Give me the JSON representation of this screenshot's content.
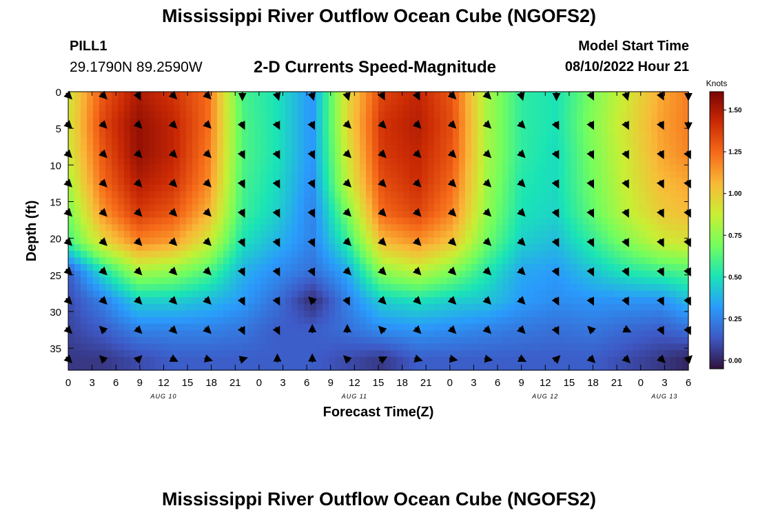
{
  "title_top": "Mississippi River Outflow Ocean Cube (NGOFS2)",
  "title_bottom": "Mississippi River Outflow Ocean Cube (NGOFS2)",
  "station": "PILL1",
  "coords": "29.1790N  89.2590W",
  "plot_title": "2-D Currents Speed-Magnitude",
  "model_start_label": "Model Start Time",
  "model_start_value": "08/10/2022 Hour 21",
  "colors": {
    "colormap": [
      "#30123b",
      "#3e58c4",
      "#2a9bfc",
      "#1ae4b6",
      "#72fe5e",
      "#c8ef34",
      "#f9ba38",
      "#f66b19",
      "#cb2a04",
      "#7a0403"
    ],
    "arrow": "#000000"
  },
  "chart_data": {
    "type": "heatmap",
    "xlabel": "Forecast Time(Z)",
    "ylabel": "Depth (ft)",
    "x_ticks": [
      "0",
      "3",
      "6",
      "9",
      "12",
      "15",
      "18",
      "21",
      "0",
      "3",
      "6",
      "9",
      "12",
      "15",
      "18",
      "21",
      "0",
      "3",
      "6",
      "9",
      "12",
      "15",
      "18",
      "21",
      "0",
      "3",
      "6"
    ],
    "date_labels": [
      {
        "label": "AUG 10",
        "hour": 12
      },
      {
        "label": "AUG 11",
        "hour": 36
      },
      {
        "label": "AUG 12",
        "hour": 60
      },
      {
        "label": "AUG 13",
        "hour": 75
      }
    ],
    "x_range_hours": [
      0,
      78
    ],
    "y_ticks": [
      0,
      5,
      10,
      15,
      20,
      25,
      30,
      35
    ],
    "ylim": [
      0,
      38
    ],
    "y_inverted": true,
    "colorbar": {
      "label": "Knots",
      "range": [
        -0.05,
        1.61
      ],
      "ticks": [
        "0.00",
        "0.25",
        "0.50",
        "0.75",
        "1.00",
        "1.25",
        "1.50"
      ]
    },
    "vector_hours": [
      0,
      4.4,
      8.8,
      13.2,
      17.5,
      21.9,
      26.3,
      30.7,
      35.1,
      39.5,
      43.9,
      48.3,
      52.7,
      57.0,
      61.4,
      65.8,
      70.2,
      74.6,
      78
    ],
    "vector_depths": [
      0.5,
      4.5,
      8.5,
      12.5,
      16.5,
      20.5,
      24.5,
      28.5,
      32.5,
      36.5
    ],
    "speed_grid": [
      [
        0.9,
        1.3,
        1.5,
        1.4,
        1.25,
        0.6,
        0.5,
        0.3,
        0.95,
        1.35,
        1.45,
        1.3,
        0.8,
        0.55,
        0.5,
        0.7,
        0.9,
        1.1,
        1.2
      ],
      [
        0.9,
        1.35,
        1.55,
        1.45,
        1.25,
        0.62,
        0.5,
        0.3,
        0.95,
        1.4,
        1.48,
        1.32,
        0.8,
        0.55,
        0.5,
        0.72,
        0.92,
        1.12,
        1.2
      ],
      [
        0.88,
        1.3,
        1.55,
        1.45,
        1.22,
        0.62,
        0.5,
        0.3,
        0.9,
        1.38,
        1.45,
        1.3,
        0.8,
        0.55,
        0.48,
        0.7,
        0.9,
        1.1,
        1.18
      ],
      [
        0.8,
        1.25,
        1.48,
        1.4,
        1.18,
        0.6,
        0.48,
        0.28,
        0.85,
        1.32,
        1.42,
        1.25,
        0.78,
        0.52,
        0.48,
        0.68,
        0.88,
        1.05,
        1.1
      ],
      [
        0.7,
        1.15,
        1.38,
        1.3,
        1.08,
        0.58,
        0.45,
        0.25,
        0.7,
        1.25,
        1.35,
        1.18,
        0.75,
        0.5,
        0.46,
        0.65,
        0.85,
        1.0,
        1.05
      ],
      [
        0.58,
        0.95,
        1.18,
        1.12,
        0.9,
        0.5,
        0.38,
        0.25,
        0.55,
        1.05,
        1.15,
        1.02,
        0.68,
        0.45,
        0.4,
        0.55,
        0.72,
        0.88,
        0.92
      ],
      [
        0.15,
        0.5,
        0.8,
        0.75,
        0.62,
        0.38,
        0.28,
        0.2,
        0.35,
        0.75,
        0.85,
        0.72,
        0.52,
        0.35,
        0.32,
        0.42,
        0.52,
        0.58,
        0.62
      ],
      [
        0.1,
        0.25,
        0.45,
        0.45,
        0.4,
        0.32,
        0.2,
        0.02,
        0.25,
        0.45,
        0.5,
        0.45,
        0.42,
        0.32,
        0.28,
        0.3,
        0.3,
        0.3,
        0.4
      ],
      [
        0.08,
        0.15,
        0.25,
        0.25,
        0.25,
        0.22,
        0.15,
        0.15,
        0.2,
        0.28,
        0.3,
        0.28,
        0.25,
        0.22,
        0.2,
        0.22,
        0.18,
        0.15,
        0.2
      ],
      [
        0.05,
        0.05,
        0.1,
        0.15,
        0.15,
        0.15,
        0.15,
        0.15,
        0.1,
        0.05,
        0.15,
        0.15,
        0.15,
        0.15,
        0.15,
        0.15,
        0.1,
        0.05,
        0.0
      ]
    ],
    "vectors": [
      [
        [
          1,
          1
        ],
        [
          1,
          1
        ],
        [
          0.5,
          1
        ],
        [
          1,
          1
        ],
        [
          1,
          1
        ],
        [
          0,
          1
        ],
        [
          0.3,
          1
        ],
        [
          0.3,
          1
        ],
        [
          0.3,
          1
        ],
        [
          0.5,
          1
        ],
        [
          0.5,
          1
        ],
        [
          1,
          1
        ],
        [
          1,
          1
        ],
        [
          0.3,
          1
        ],
        [
          0,
          1
        ],
        [
          0.5,
          1
        ],
        [
          0.3,
          1
        ],
        [
          0.5,
          1
        ],
        [
          0,
          1
        ]
      ],
      [
        [
          1,
          1
        ],
        [
          1,
          1
        ],
        [
          1,
          1
        ],
        [
          1,
          1
        ],
        [
          1,
          1
        ],
        [
          0.5,
          1
        ],
        [
          0.5,
          1
        ],
        [
          0.5,
          1
        ],
        [
          1,
          1
        ],
        [
          1,
          1
        ],
        [
          1,
          1
        ],
        [
          1,
          1
        ],
        [
          1,
          1
        ],
        [
          1,
          1
        ],
        [
          0.5,
          1
        ],
        [
          0.5,
          1
        ],
        [
          0.5,
          1
        ],
        [
          0.5,
          1
        ],
        [
          0,
          1
        ]
      ],
      [
        [
          1,
          1
        ],
        [
          1,
          1
        ],
        [
          1,
          1
        ],
        [
          1,
          1
        ],
        [
          1,
          1
        ],
        [
          0.5,
          1
        ],
        [
          0.5,
          1
        ],
        [
          0.5,
          1
        ],
        [
          1,
          1
        ],
        [
          1,
          1
        ],
        [
          1,
          1
        ],
        [
          1,
          1
        ],
        [
          1,
          1
        ],
        [
          1,
          1
        ],
        [
          0.5,
          1
        ],
        [
          0.5,
          1
        ],
        [
          0.5,
          1
        ],
        [
          0.5,
          1
        ],
        [
          0.5,
          1
        ]
      ],
      [
        [
          1,
          1
        ],
        [
          1,
          1
        ],
        [
          1,
          1
        ],
        [
          1,
          1
        ],
        [
          1,
          1
        ],
        [
          0.5,
          1
        ],
        [
          0.5,
          1
        ],
        [
          0.5,
          1
        ],
        [
          1,
          1
        ],
        [
          1,
          1
        ],
        [
          1,
          1
        ],
        [
          1,
          1
        ],
        [
          1,
          1
        ],
        [
          1,
          1
        ],
        [
          0.5,
          1
        ],
        [
          0.5,
          1
        ],
        [
          0.5,
          1
        ],
        [
          0.5,
          1
        ],
        [
          0.5,
          1
        ]
      ],
      [
        [
          1,
          1
        ],
        [
          1,
          1
        ],
        [
          1,
          1
        ],
        [
          1,
          1
        ],
        [
          1,
          1
        ],
        [
          0.5,
          1
        ],
        [
          0.5,
          1
        ],
        [
          0.5,
          1
        ],
        [
          1,
          1
        ],
        [
          1,
          1
        ],
        [
          1,
          1
        ],
        [
          1,
          1
        ],
        [
          1,
          1
        ],
        [
          1,
          1
        ],
        [
          0.5,
          1
        ],
        [
          0.5,
          1
        ],
        [
          0.5,
          1
        ],
        [
          0.5,
          1
        ],
        [
          0.5,
          1
        ]
      ],
      [
        [
          1,
          1
        ],
        [
          1,
          1
        ],
        [
          1,
          1
        ],
        [
          1,
          1
        ],
        [
          1,
          1
        ],
        [
          0.5,
          1
        ],
        [
          0.5,
          1
        ],
        [
          0.5,
          1
        ],
        [
          1,
          1
        ],
        [
          1,
          1
        ],
        [
          1,
          1
        ],
        [
          1,
          1
        ],
        [
          1,
          1
        ],
        [
          1,
          1
        ],
        [
          0.5,
          1
        ],
        [
          0.5,
          1
        ],
        [
          0.5,
          1
        ],
        [
          0.5,
          1
        ],
        [
          0.5,
          1
        ]
      ],
      [
        [
          1,
          1
        ],
        [
          1,
          1
        ],
        [
          1,
          1
        ],
        [
          1,
          1
        ],
        [
          1,
          1
        ],
        [
          0.5,
          1
        ],
        [
          0.5,
          1
        ],
        [
          0.5,
          1
        ],
        [
          1,
          1
        ],
        [
          1,
          1
        ],
        [
          1,
          1
        ],
        [
          1,
          1
        ],
        [
          1,
          1
        ],
        [
          1,
          1
        ],
        [
          0.5,
          1
        ],
        [
          0.5,
          1
        ],
        [
          0.5,
          1
        ],
        [
          0.5,
          1
        ],
        [
          0.5,
          1
        ]
      ],
      [
        [
          1,
          1
        ],
        [
          1,
          1
        ],
        [
          1,
          1
        ],
        [
          1,
          1
        ],
        [
          1,
          1
        ],
        [
          0.5,
          1
        ],
        [
          0.5,
          1
        ],
        [
          -1,
          -1
        ],
        [
          0.5,
          1
        ],
        [
          1,
          1
        ],
        [
          1,
          1
        ],
        [
          1,
          1
        ],
        [
          1,
          1
        ],
        [
          1,
          1
        ],
        [
          0.5,
          1
        ],
        [
          0.5,
          1
        ],
        [
          0.5,
          1
        ],
        [
          0.5,
          1
        ],
        [
          0.5,
          1
        ]
      ],
      [
        [
          1,
          1
        ],
        [
          -1,
          -1
        ],
        [
          1,
          1
        ],
        [
          1,
          1
        ],
        [
          1,
          1
        ],
        [
          0.5,
          1
        ],
        [
          0.5,
          1
        ],
        [
          0,
          -1
        ],
        [
          0,
          -1
        ],
        [
          -1,
          -1
        ],
        [
          1,
          1
        ],
        [
          1,
          1
        ],
        [
          1,
          1
        ],
        [
          1,
          1
        ],
        [
          0.5,
          1
        ],
        [
          -1,
          -1
        ],
        [
          1,
          0.5
        ],
        [
          0.5,
          1
        ],
        [
          0.5,
          1
        ]
      ],
      [
        [
          1,
          1
        ],
        [
          -1,
          -1
        ],
        [
          1,
          -1
        ],
        [
          1,
          0.5
        ],
        [
          1,
          0.3
        ],
        [
          1,
          -0.3
        ],
        [
          0,
          -1
        ],
        [
          0,
          -1
        ],
        [
          -1,
          -1
        ],
        [
          1,
          -0.5
        ],
        [
          1,
          0.3
        ],
        [
          1,
          0.2
        ],
        [
          1,
          0.2
        ],
        [
          1,
          0.5
        ],
        [
          1,
          -1
        ],
        [
          1,
          1
        ],
        [
          1,
          1
        ],
        [
          1,
          1
        ],
        [
          1,
          -1
        ]
      ]
    ]
  }
}
